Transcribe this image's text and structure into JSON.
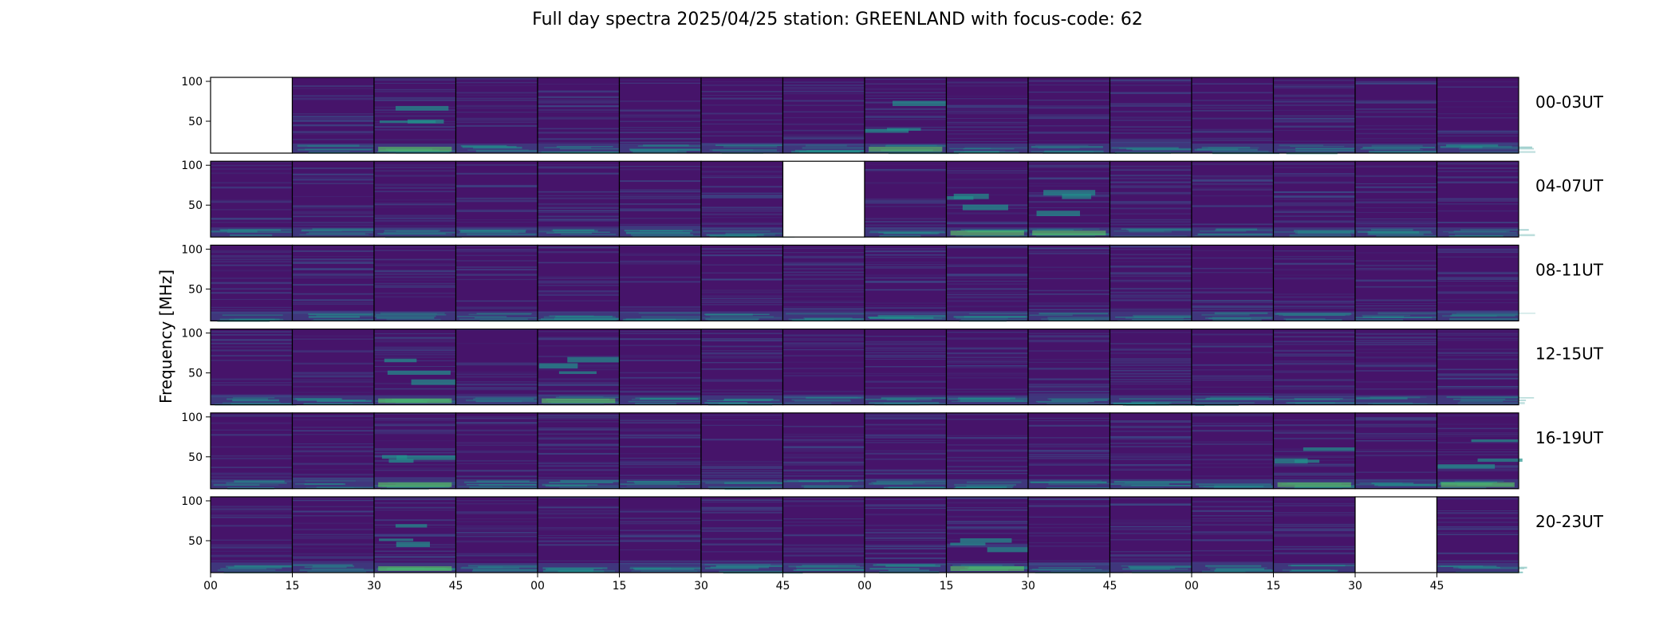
{
  "chart_data": {
    "type": "heatmap",
    "title": "Full day spectra 2025/04/25 station: GREENLAND with focus-code: 62",
    "ylabel": "Frequency [MHz]",
    "colormap": "viridis",
    "ylim": [
      10,
      105
    ],
    "yticks": [
      50,
      100
    ],
    "xtick_labels": [
      "00",
      "15",
      "30",
      "45",
      "00",
      "15",
      "30",
      "45",
      "00",
      "15",
      "30",
      "45",
      "00",
      "15",
      "30",
      "45"
    ],
    "panels_per_row": 16,
    "panel_minutes": 15,
    "rows": [
      {
        "label": "00-03UT",
        "missing_panels": [
          0
        ],
        "highlight_panels": [
          2,
          8
        ]
      },
      {
        "label": "04-07UT",
        "missing_panels": [
          7
        ],
        "highlight_panels": [
          9,
          10
        ]
      },
      {
        "label": "08-11UT",
        "missing_panels": [],
        "highlight_panels": []
      },
      {
        "label": "12-15UT",
        "missing_panels": [],
        "highlight_panels": [
          2,
          4
        ]
      },
      {
        "label": "16-19UT",
        "missing_panels": [],
        "highlight_panels": [
          2,
          13,
          15
        ]
      },
      {
        "label": "20-23UT",
        "missing_panels": [
          14
        ],
        "highlight_panels": [
          2,
          9
        ]
      }
    ],
    "colors": {
      "background": "#46146a",
      "band": "#3b528b",
      "low_freq": "#21918c",
      "strong": "#5ec962",
      "missing": "#ffffff"
    }
  }
}
